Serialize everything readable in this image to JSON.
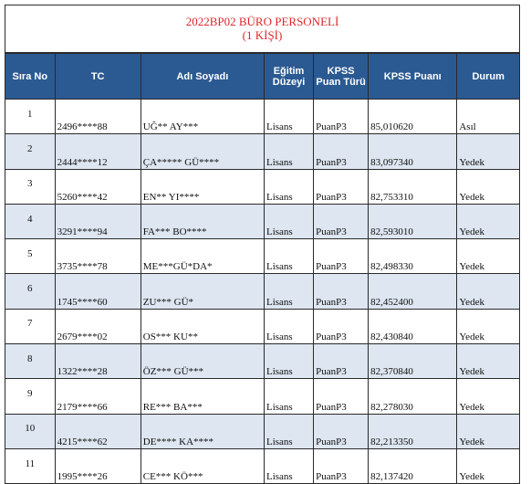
{
  "title": {
    "line1": "2022BP02 BÜRO PERSONELİ",
    "line2": "(1 KİŞİ)"
  },
  "colors": {
    "header_bg": "#2b5a92",
    "title_red": "#e0262b",
    "stripe": "#dde6f1"
  },
  "headers": {
    "sira": "Sıra No",
    "tc": "TC",
    "ad": "Adı Soyadı",
    "egitim": "Eğitim Düzeyi",
    "puan_turu": "KPSS Puan Türü",
    "puan": "KPSS Puanı",
    "durum": "Durum"
  },
  "rows": [
    {
      "no": "1",
      "tc": "2496****88",
      "name": "UĞ**  AY***",
      "egitim": "Lisans",
      "puan_turu": "PuanP3",
      "puan": "85,010620",
      "durum": "Asıl"
    },
    {
      "no": "2",
      "tc": "2444****12",
      "name": "ÇA*****  GÜ****",
      "egitim": "Lisans",
      "puan_turu": "PuanP3",
      "puan": "83,097340",
      "durum": "Yedek"
    },
    {
      "no": "3",
      "tc": "5260****42",
      "name": "EN**  YI****",
      "egitim": "Lisans",
      "puan_turu": "PuanP3",
      "puan": "82,753310",
      "durum": "Yedek"
    },
    {
      "no": "4",
      "tc": "3291****94",
      "name": "FA***  BO****",
      "egitim": "Lisans",
      "puan_turu": "PuanP3",
      "puan": "82,593010",
      "durum": "Yedek"
    },
    {
      "no": "5",
      "tc": "3735****78",
      "name": "ME***GÜ*DA*",
      "egitim": "Lisans",
      "puan_turu": "PuanP3",
      "puan": "82,498330",
      "durum": "Yedek"
    },
    {
      "no": "6",
      "tc": "1745****60",
      "name": "ZU***  GÜ*",
      "egitim": "Lisans",
      "puan_turu": "PuanP3",
      "puan": "82,452400",
      "durum": "Yedek"
    },
    {
      "no": "7",
      "tc": "2679****02",
      "name": "OS***  KU**",
      "egitim": "Lisans",
      "puan_turu": "PuanP3",
      "puan": "82,430840",
      "durum": "Yedek"
    },
    {
      "no": "8",
      "tc": "1322****28",
      "name": "ÖZ***  GÜ***",
      "egitim": "Lisans",
      "puan_turu": "PuanP3",
      "puan": "82,370840",
      "durum": "Yedek"
    },
    {
      "no": "9",
      "tc": "2179****66",
      "name": "RE***  BA***",
      "egitim": "Lisans",
      "puan_turu": "PuanP3",
      "puan": "82,278030",
      "durum": "Yedek"
    },
    {
      "no": "10",
      "tc": "4215****62",
      "name": "DE****  KA****",
      "egitim": "Lisans",
      "puan_turu": "PuanP3",
      "puan": "82,213350",
      "durum": "Yedek"
    },
    {
      "no": "11",
      "tc": "1995****26",
      "name": "CE***  KÖ***",
      "egitim": "Lisans",
      "puan_turu": "PuanP3",
      "puan": "82,137420",
      "durum": "Yedek"
    }
  ]
}
